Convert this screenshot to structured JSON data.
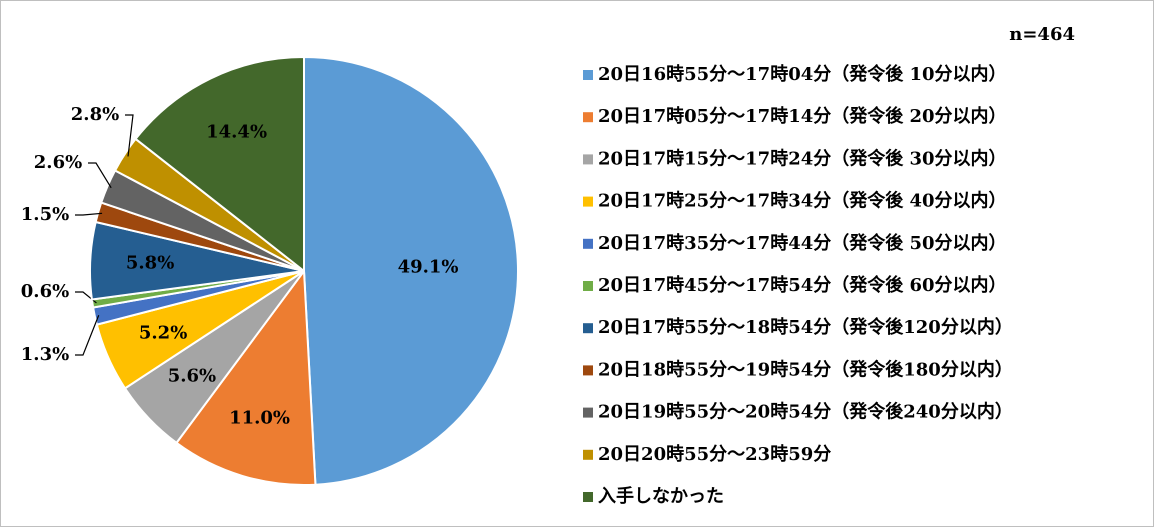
{
  "chart_data": {
    "type": "pie",
    "subtitle": "n=464",
    "categories": [
      "20日16時55分～17時04分（発令後 10分以内）",
      "20日17時05分～17時14分（発令後 20分以内）",
      "20日17時15分～17時24分（発令後 30分以内）",
      "20日17時25分～17時34分（発令後 40分以内）",
      "20日17時35分～17時44分（発令後 50分以内）",
      "20日17時45分～17時54分（発令後 60分以内）",
      "20日17時55分～18時54分（発令後120分以内）",
      "20日18時55分～19時54分（発令後180分以内）",
      "20日19時55分～20時54分（発令後240分以内）",
      "20日20時55分～23時59分",
      "入手しなかった"
    ],
    "values": [
      49.1,
      11.0,
      5.6,
      5.2,
      1.3,
      0.6,
      5.8,
      1.5,
      2.6,
      2.8,
      14.4
    ],
    "value_labels": [
      "49.1%",
      "11.0%",
      "5.6%",
      "5.2%",
      "1.3%",
      "0.6%",
      "5.8%",
      "1.5%",
      "2.6%",
      "2.8%",
      "14.4%"
    ],
    "colors": [
      "#5b9bd5",
      "#ed7d31",
      "#a5a5a5",
      "#ffc000",
      "#4472c4",
      "#70ad47",
      "#255e91",
      "#9e480e",
      "#636363",
      "#bf9000",
      "#43682b"
    ],
    "legend": "right"
  }
}
